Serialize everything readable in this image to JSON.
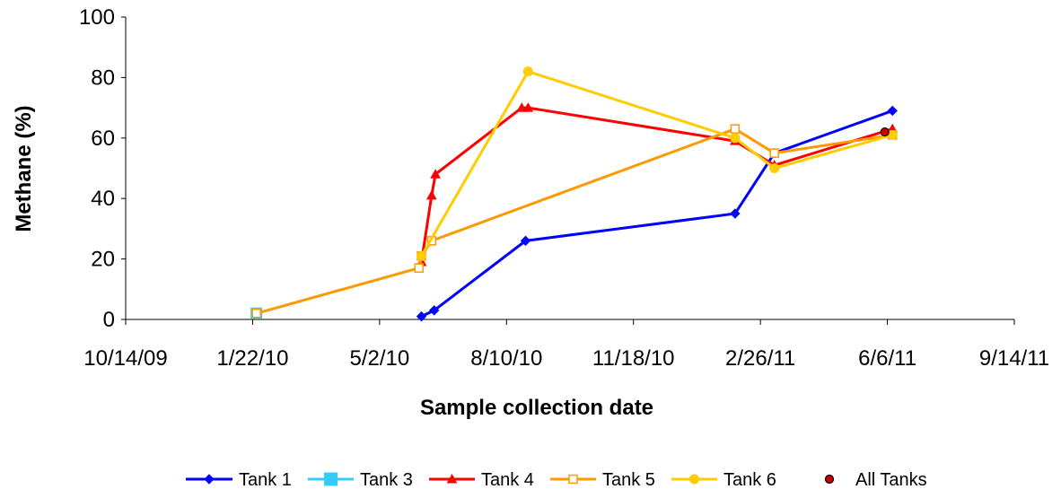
{
  "chart_data": {
    "type": "line",
    "xlabel": "Sample collection date",
    "ylabel": "Methane (%)",
    "ylim": [
      0,
      100
    ],
    "yticks": [
      "0",
      "20",
      "40",
      "60",
      "80",
      "100"
    ],
    "xlim": [
      "2009-10-14",
      "2011-09-14"
    ],
    "xticks": [
      {
        "date": "2009-10-14",
        "label": "10/14/09"
      },
      {
        "date": "2010-01-22",
        "label": "1/22/10"
      },
      {
        "date": "2010-05-02",
        "label": "5/2/10"
      },
      {
        "date": "2010-08-10",
        "label": "8/10/10"
      },
      {
        "date": "2010-11-18",
        "label": "11/18/10"
      },
      {
        "date": "2011-02-26",
        "label": "2/26/11"
      },
      {
        "date": "2011-06-06",
        "label": "6/6/11"
      },
      {
        "date": "2011-09-14",
        "label": "9/14/11"
      }
    ],
    "legend_position": "bottom",
    "grid": false,
    "series": [
      {
        "name": "Tank 1",
        "color": "#0000ff",
        "marker": "diamond",
        "line": true,
        "points": [
          {
            "x": "2010-06-04",
            "y": 1
          },
          {
            "x": "2010-06-14",
            "y": 3
          },
          {
            "x": "2010-08-25",
            "y": 26
          },
          {
            "x": "2011-02-06",
            "y": 35
          },
          {
            "x": "2011-03-09",
            "y": 55
          },
          {
            "x": "2011-06-10",
            "y": 69
          }
        ]
      },
      {
        "name": "Tank 3",
        "color": "#33ccff",
        "marker": "square",
        "line": true,
        "points": [
          {
            "x": "2010-01-25",
            "y": 2
          }
        ]
      },
      {
        "name": "Tank 4",
        "color": "#ff0000",
        "marker": "triangle",
        "line": true,
        "points": [
          {
            "x": "2010-06-04",
            "y": 19
          },
          {
            "x": "2010-06-12",
            "y": 41
          },
          {
            "x": "2010-06-15",
            "y": 48
          },
          {
            "x": "2010-08-22",
            "y": 70
          },
          {
            "x": "2010-08-27",
            "y": 70
          },
          {
            "x": "2011-02-06",
            "y": 59
          },
          {
            "x": "2011-03-09",
            "y": 51
          },
          {
            "x": "2011-06-10",
            "y": 63
          }
        ]
      },
      {
        "name": "Tank 5",
        "color": "#ff9900",
        "marker": "square-open",
        "line": true,
        "points": [
          {
            "x": "2010-01-25",
            "y": 2
          },
          {
            "x": "2010-06-02",
            "y": 17
          },
          {
            "x": "2010-06-04",
            "y": 21
          },
          {
            "x": "2010-06-12",
            "y": 26
          },
          {
            "x": "2011-02-06",
            "y": 63
          },
          {
            "x": "2011-03-09",
            "y": 55
          },
          {
            "x": "2011-06-10",
            "y": 61
          }
        ]
      },
      {
        "name": "Tank 6",
        "color": "#ffcc00",
        "marker": "circle",
        "line": true,
        "points": [
          {
            "x": "2010-06-04",
            "y": 21
          },
          {
            "x": "2010-08-27",
            "y": 82
          },
          {
            "x": "2011-02-06",
            "y": 60
          },
          {
            "x": "2011-03-09",
            "y": 50
          },
          {
            "x": "2011-06-10",
            "y": 61
          }
        ]
      },
      {
        "name": "All Tanks",
        "color": "#cc0000",
        "marker": "circle-dark",
        "line": false,
        "points": [
          {
            "x": "2011-06-04",
            "y": 62
          }
        ]
      }
    ]
  }
}
